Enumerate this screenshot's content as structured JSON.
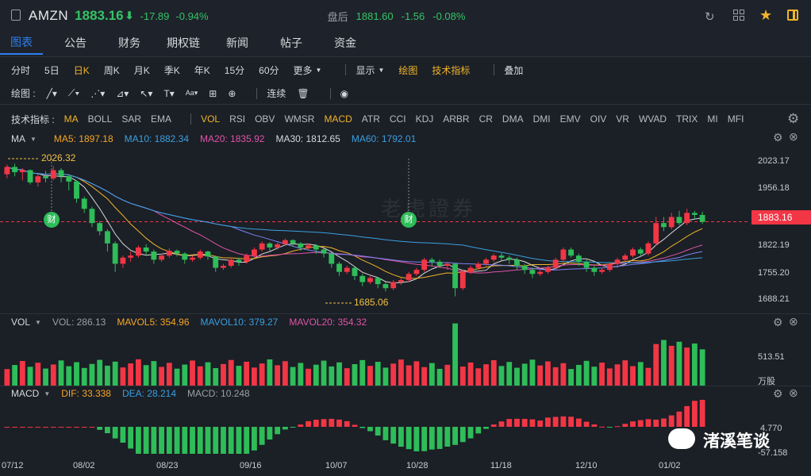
{
  "header": {
    "symbol": "AMZN",
    "price": "1883.16",
    "arrow": "⬇",
    "change": "-17.89",
    "change_pct": "-0.94%",
    "after_hours_label": "盘后",
    "after_hours_price": "1881.60",
    "after_hours_change": "-1.56",
    "after_hours_pct": "-0.08%"
  },
  "tabs": [
    "图表",
    "公告",
    "财务",
    "期权链",
    "新闻",
    "帖子",
    "资金"
  ],
  "periods": [
    "分时",
    "5日",
    "日K",
    "周K",
    "月K",
    "季K",
    "年K",
    "15分",
    "60分",
    "更多"
  ],
  "period_active": "日K",
  "display_menu": "显示",
  "draw_btn": "绘图",
  "tech_btn": "技术指标",
  "overlay_btn": "叠加",
  "drawbar": {
    "label": "绘图 :",
    "continuous": "连续"
  },
  "indicators": {
    "label": "技术指标 :",
    "main": [
      "MA",
      "BOLL",
      "SAR",
      "EMA"
    ],
    "sub": [
      "VOL",
      "RSI",
      "OBV",
      "WMSR",
      "MACD",
      "ATR",
      "CCI",
      "KDJ",
      "ARBR",
      "CR",
      "DMA",
      "DMI",
      "EMV",
      "OIV",
      "VR",
      "WVAD",
      "TRIX",
      "MI",
      "MFI"
    ]
  },
  "ma_legend": {
    "name": "MA",
    "ma5": "MA5: 1897.18",
    "ma10": "MA10: 1882.34",
    "ma20": "MA20: 1835.92",
    "ma30": "MA30: 1812.65",
    "ma60": "MA60: 1792.01"
  },
  "vol_legend": {
    "name": "VOL",
    "vol": "VOL: 286.13",
    "mavol5": "MAVOL5: 354.96",
    "mavol10": "MAVOL10: 379.27",
    "mavol20": "MAVOL20: 354.32"
  },
  "macd_legend": {
    "name": "MACD",
    "dif": "DIF: 33.338",
    "dea": "DEA: 28.214",
    "macd": "MACD: 10.248"
  },
  "price_axis": [
    "2023.17",
    "1956.18",
    "1822.19",
    "1755.20",
    "1688.21"
  ],
  "current_price_tag": "1883.16",
  "high_marker": "2026.32",
  "low_marker": "1685.06",
  "earnings_badge": "财",
  "vol_axis": {
    "value": "513.51",
    "unit": "万股"
  },
  "macd_axis": [
    "4.770",
    "-57.158"
  ],
  "date_axis": [
    "07/12",
    "08/02",
    "08/23",
    "09/16",
    "10/07",
    "10/28",
    "11/18",
    "12/10",
    "01/02"
  ],
  "watermark": "老虎證券",
  "wechat_label": "渚溪笔谈",
  "colors": {
    "up": "#f23645",
    "down": "#2ebd59",
    "ma5": "#d9d9d9",
    "ma10": "#f0b429",
    "ma20": "#e054a8",
    "ma30": "#7b83f5",
    "ma60": "#3aa0e0"
  },
  "chart_data": {
    "type": "candlestick",
    "ylim": [
      1660,
      2050
    ],
    "candles": [
      [
        2000,
        2018,
        1990,
        2024
      ],
      [
        2018,
        2005,
        1995,
        2026
      ],
      [
        2005,
        2010,
        1985,
        2015
      ],
      [
        2010,
        1980,
        1975,
        2012
      ],
      [
        1980,
        1995,
        1970,
        2000
      ],
      [
        1995,
        1990,
        1980,
        2008
      ],
      [
        1990,
        2010,
        1985,
        2020
      ],
      [
        2010,
        1995,
        1980,
        2015
      ],
      [
        1995,
        1982,
        1960,
        2000
      ],
      [
        1982,
        1940,
        1930,
        1985
      ],
      [
        1940,
        1915,
        1905,
        1945
      ],
      [
        1915,
        1880,
        1870,
        1920
      ],
      [
        1880,
        1860,
        1850,
        1885
      ],
      [
        1860,
        1830,
        1810,
        1865
      ],
      [
        1830,
        1780,
        1760,
        1835
      ],
      [
        1780,
        1795,
        1770,
        1800
      ],
      [
        1795,
        1800,
        1785,
        1810
      ],
      [
        1800,
        1820,
        1795,
        1825
      ],
      [
        1820,
        1810,
        1800,
        1828
      ],
      [
        1810,
        1790,
        1780,
        1815
      ],
      [
        1790,
        1800,
        1785,
        1805
      ],
      [
        1800,
        1812,
        1795,
        1818
      ],
      [
        1812,
        1805,
        1798,
        1815
      ],
      [
        1805,
        1790,
        1780,
        1808
      ],
      [
        1790,
        1795,
        1785,
        1800
      ],
      [
        1795,
        1810,
        1790,
        1815
      ],
      [
        1810,
        1798,
        1790,
        1812
      ],
      [
        1798,
        1770,
        1760,
        1800
      ],
      [
        1770,
        1775,
        1765,
        1780
      ],
      [
        1775,
        1790,
        1770,
        1795
      ],
      [
        1790,
        1785,
        1775,
        1795
      ],
      [
        1785,
        1800,
        1780,
        1805
      ],
      [
        1800,
        1815,
        1795,
        1820
      ],
      [
        1815,
        1830,
        1810,
        1835
      ],
      [
        1830,
        1820,
        1812,
        1833
      ],
      [
        1820,
        1828,
        1815,
        1832
      ],
      [
        1828,
        1838,
        1825,
        1842
      ],
      [
        1838,
        1830,
        1822,
        1840
      ],
      [
        1830,
        1820,
        1812,
        1833
      ],
      [
        1820,
        1825,
        1815,
        1830
      ],
      [
        1825,
        1815,
        1805,
        1828
      ],
      [
        1815,
        1805,
        1795,
        1818
      ],
      [
        1805,
        1780,
        1770,
        1808
      ],
      [
        1780,
        1760,
        1750,
        1785
      ],
      [
        1760,
        1770,
        1755,
        1775
      ],
      [
        1770,
        1750,
        1740,
        1772
      ],
      [
        1750,
        1735,
        1725,
        1755
      ],
      [
        1735,
        1745,
        1730,
        1750
      ],
      [
        1745,
        1730,
        1720,
        1748
      ],
      [
        1730,
        1720,
        1712,
        1735
      ],
      [
        1720,
        1735,
        1715,
        1740
      ],
      [
        1735,
        1740,
        1728,
        1745
      ],
      [
        1740,
        1755,
        1735,
        1760
      ],
      [
        1755,
        1765,
        1750,
        1770
      ],
      [
        1765,
        1790,
        1760,
        1795
      ],
      [
        1790,
        1785,
        1775,
        1795
      ],
      [
        1785,
        1775,
        1770,
        1790
      ],
      [
        1775,
        1780,
        1765,
        1785
      ],
      [
        1780,
        1720,
        1700,
        1782
      ],
      [
        1720,
        1760,
        1715,
        1765
      ],
      [
        1760,
        1770,
        1755,
        1775
      ],
      [
        1770,
        1780,
        1765,
        1785
      ],
      [
        1780,
        1790,
        1775,
        1795
      ],
      [
        1790,
        1800,
        1785,
        1805
      ],
      [
        1800,
        1795,
        1788,
        1806
      ],
      [
        1795,
        1790,
        1780,
        1800
      ],
      [
        1790,
        1775,
        1765,
        1795
      ],
      [
        1775,
        1765,
        1755,
        1780
      ],
      [
        1765,
        1755,
        1745,
        1770
      ],
      [
        1755,
        1760,
        1750,
        1765
      ],
      [
        1760,
        1770,
        1755,
        1775
      ],
      [
        1770,
        1790,
        1765,
        1795
      ],
      [
        1790,
        1815,
        1785,
        1820
      ],
      [
        1815,
        1800,
        1795,
        1820
      ],
      [
        1800,
        1785,
        1775,
        1805
      ],
      [
        1785,
        1770,
        1760,
        1790
      ],
      [
        1770,
        1760,
        1750,
        1775
      ],
      [
        1760,
        1765,
        1755,
        1770
      ],
      [
        1765,
        1780,
        1760,
        1785
      ],
      [
        1780,
        1790,
        1775,
        1795
      ],
      [
        1790,
        1800,
        1785,
        1805
      ],
      [
        1800,
        1815,
        1795,
        1820
      ],
      [
        1815,
        1805,
        1800,
        1820
      ],
      [
        1805,
        1830,
        1800,
        1835
      ],
      [
        1830,
        1880,
        1825,
        1895
      ],
      [
        1880,
        1870,
        1860,
        1895
      ],
      [
        1870,
        1895,
        1865,
        1905
      ],
      [
        1895,
        1880,
        1875,
        1910
      ],
      [
        1880,
        1905,
        1875,
        1915
      ],
      [
        1905,
        1900,
        1890,
        1910
      ],
      [
        1900,
        1883,
        1878,
        1908
      ]
    ],
    "dates": [
      "07/12",
      "08/02",
      "08/23",
      "09/16",
      "10/07",
      "10/28",
      "11/18",
      "12/10",
      "01/02"
    ]
  }
}
